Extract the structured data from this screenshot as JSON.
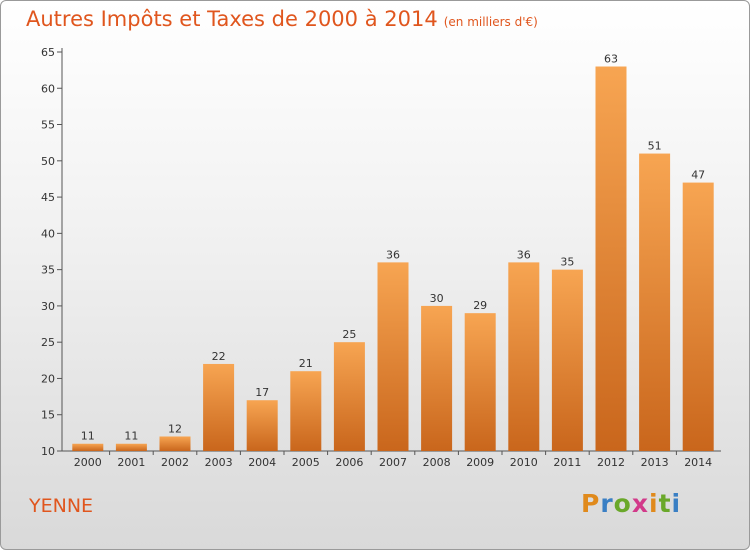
{
  "title": "Autres Impôts et Taxes de 2000 à 2014",
  "subtitle": "(en milliers d'€)",
  "place": "YENNE",
  "logo": "Proxiti",
  "colors": {
    "accent": "#e0561e",
    "bar_light": "#f7a552",
    "bar_dark": "#c9661c"
  },
  "chart_data": {
    "type": "bar",
    "title": "Autres Impôts et Taxes de 2000 à 2014",
    "subtitle": "(en milliers d'€)",
    "categories": [
      "2000",
      "2001",
      "2002",
      "2003",
      "2004",
      "2005",
      "2006",
      "2007",
      "2008",
      "2009",
      "2010",
      "2011",
      "2012",
      "2013",
      "2014"
    ],
    "values": [
      11,
      11,
      12,
      22,
      17,
      21,
      25,
      36,
      30,
      29,
      36,
      35,
      63,
      51,
      47
    ],
    "ylim": [
      10,
      65
    ],
    "yticks": [
      10,
      15,
      20,
      25,
      30,
      35,
      40,
      45,
      50,
      55,
      60,
      65
    ],
    "grid": false,
    "data_labels": true
  }
}
